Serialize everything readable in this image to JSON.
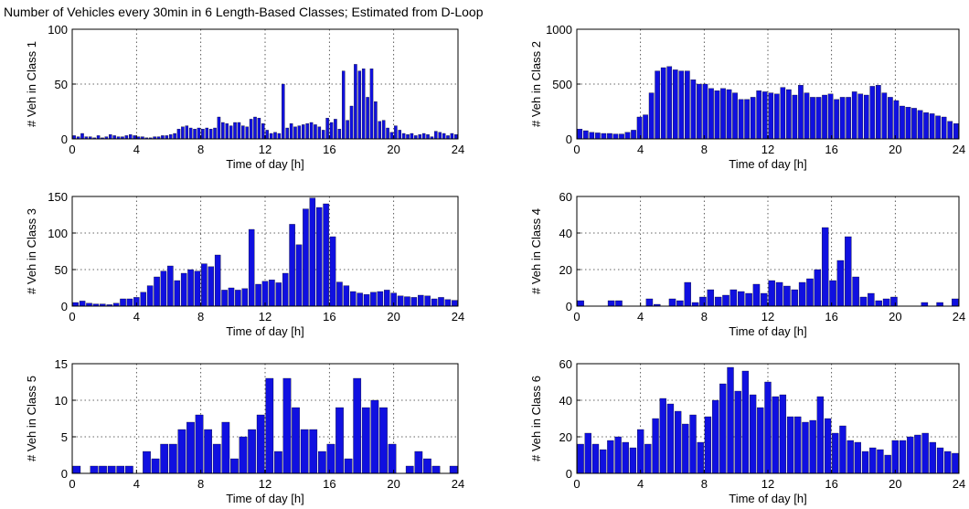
{
  "figure": {
    "title": "Number of Vehicles every 30min in 6 Length-Based Classes; Estimated from D-Loop",
    "bar_color": "#1010e0",
    "grid": "dotted"
  },
  "chart_data": [
    {
      "type": "bar",
      "xlabel": "Time of day [h]",
      "ylabel": "# Veh in Class 1",
      "xlim": [
        0,
        24
      ],
      "ylim": [
        0,
        100
      ],
      "xticks": [
        0,
        4,
        8,
        12,
        16,
        20,
        24
      ],
      "yticks": [
        0,
        50,
        100
      ],
      "bin_width_h": 0.5,
      "values": [
        3,
        2,
        5,
        2,
        2,
        1,
        3,
        1,
        2,
        4,
        3,
        2,
        2,
        3,
        4,
        3,
        2,
        2,
        1,
        1,
        2,
        2,
        3,
        3,
        4,
        5,
        9,
        11,
        12,
        10,
        9,
        10,
        9,
        10,
        9,
        10,
        20,
        15,
        14,
        12,
        15,
        15,
        12,
        11,
        18,
        20,
        19,
        14,
        8,
        5,
        6,
        5,
        50,
        10,
        14,
        11,
        12,
        13,
        14,
        15,
        13,
        11,
        8,
        19,
        15,
        18,
        9,
        62,
        17,
        30,
        68,
        62,
        64,
        38,
        64,
        34,
        16,
        17,
        10,
        6,
        12,
        8,
        5,
        4,
        5,
        3,
        4,
        5,
        4,
        2,
        7,
        6,
        5,
        3,
        5,
        4
      ]
    },
    {
      "type": "bar",
      "xlabel": "Time of day [h]",
      "ylabel": "# Veh in Class 2",
      "xlim": [
        0,
        24
      ],
      "ylim": [
        0,
        1000
      ],
      "xticks": [
        0,
        4,
        8,
        12,
        16,
        20,
        24
      ],
      "yticks": [
        0,
        500,
        1000
      ],
      "values": [
        90,
        75,
        60,
        55,
        50,
        50,
        45,
        45,
        60,
        80,
        200,
        220,
        420,
        620,
        650,
        660,
        630,
        620,
        620,
        540,
        500,
        500,
        460,
        440,
        460,
        450,
        420,
        360,
        360,
        380,
        440,
        430,
        420,
        410,
        470,
        450,
        400,
        490,
        420,
        380,
        380,
        400,
        410,
        360,
        380,
        380,
        430,
        410,
        400,
        480,
        490,
        420,
        380,
        350,
        300,
        290,
        280,
        260,
        240,
        230,
        210,
        200,
        160,
        140
      ]
    },
    {
      "type": "bar",
      "xlabel": "Time of day [h]",
      "ylabel": "# Veh in Class 3",
      "xlim": [
        0,
        24
      ],
      "ylim": [
        0,
        150
      ],
      "xticks": [
        0,
        4,
        8,
        12,
        16,
        20,
        24
      ],
      "yticks": [
        0,
        50,
        100,
        150
      ],
      "values": [
        5,
        7,
        4,
        3,
        3,
        2,
        4,
        10,
        10,
        12,
        19,
        28,
        40,
        48,
        55,
        35,
        45,
        50,
        48,
        58,
        54,
        70,
        22,
        25,
        22,
        24,
        105,
        30,
        34,
        36,
        32,
        45,
        112,
        84,
        133,
        148,
        135,
        140,
        95,
        33,
        28,
        20,
        18,
        16,
        19,
        20,
        22,
        18,
        14,
        13,
        12,
        15,
        14,
        10,
        12,
        9,
        8
      ]
    },
    {
      "type": "bar",
      "xlabel": "Time of day [h]",
      "ylabel": "# Veh in Class 4",
      "xlim": [
        0,
        24
      ],
      "ylim": [
        0,
        60
      ],
      "xticks": [
        0,
        4,
        8,
        12,
        16,
        20,
        24
      ],
      "yticks": [
        0,
        20,
        40,
        60
      ],
      "values": [
        3,
        0,
        0,
        0,
        3,
        3,
        0,
        0,
        0,
        4,
        1,
        0,
        4,
        3,
        13,
        2,
        5,
        9,
        5,
        6,
        9,
        8,
        7,
        12,
        7,
        14,
        13,
        11,
        9,
        13,
        15,
        20,
        43,
        14,
        25,
        38,
        16,
        5,
        7,
        3,
        4,
        5,
        0,
        0,
        0,
        2,
        0,
        2,
        0,
        4
      ]
    },
    {
      "type": "bar",
      "xlabel": "Time of day [h]",
      "ylabel": "# Veh in Class 5",
      "xlim": [
        0,
        24
      ],
      "ylim": [
        0,
        15
      ],
      "xticks": [
        0,
        4,
        8,
        12,
        16,
        20,
        24
      ],
      "yticks": [
        0,
        5,
        10,
        15
      ],
      "values": [
        1,
        0,
        1,
        1,
        1,
        1,
        1,
        0,
        3,
        2,
        4,
        4,
        6,
        7,
        8,
        6,
        4,
        7,
        2,
        5,
        6,
        8,
        13,
        3,
        13,
        9,
        6,
        6,
        3,
        4,
        9,
        2,
        13,
        9,
        10,
        9,
        4,
        0,
        1,
        3,
        2,
        1,
        0,
        1
      ]
    },
    {
      "type": "bar",
      "xlabel": "Time of day [h]",
      "ylabel": "# Veh in Class 6",
      "xlim": [
        0,
        24
      ],
      "ylim": [
        0,
        60
      ],
      "xticks": [
        0,
        4,
        8,
        12,
        16,
        20,
        24
      ],
      "yticks": [
        0,
        20,
        40,
        60
      ],
      "values": [
        16,
        22,
        16,
        13,
        18,
        20,
        17,
        14,
        24,
        16,
        30,
        41,
        38,
        34,
        27,
        32,
        17,
        31,
        40,
        49,
        58,
        45,
        56,
        43,
        36,
        50,
        42,
        43,
        31,
        31,
        28,
        29,
        42,
        30,
        22,
        26,
        18,
        17,
        12,
        14,
        13,
        10,
        18,
        18,
        20,
        21,
        22,
        17,
        14,
        12,
        11
      ]
    }
  ]
}
